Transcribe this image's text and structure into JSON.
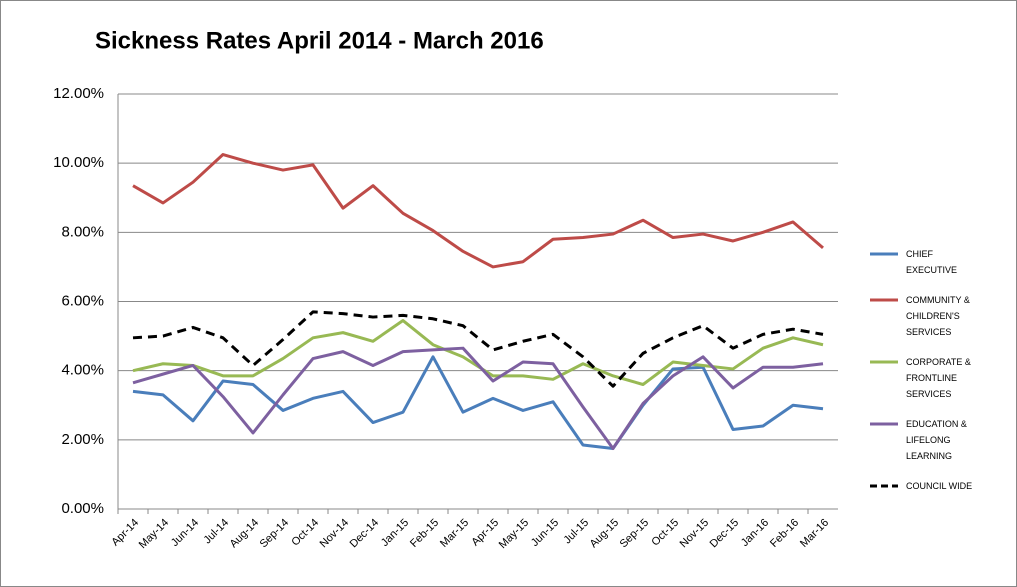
{
  "chart_data": {
    "type": "line",
    "title": "Sickness Rates April 2014 - March 2016",
    "categories": [
      "Apr-14",
      "May-14",
      "Jun-14",
      "Jul-14",
      "Aug-14",
      "Sep-14",
      "Oct-14",
      "Nov-14",
      "Dec-14",
      "Jan-15",
      "Feb-15",
      "Mar-15",
      "Apr-15",
      "May-15",
      "Jun-15",
      "Jul-15",
      "Aug-15",
      "Sep-15",
      "Oct-15",
      "Nov-15",
      "Dec-15",
      "Jan-16",
      "Feb-16",
      "Mar-16"
    ],
    "series": [
      {
        "name": "CHIEF EXECUTIVE",
        "color": "#4a7ebb",
        "values": [
          3.4,
          3.3,
          2.55,
          3.7,
          3.6,
          2.85,
          3.2,
          3.4,
          2.5,
          2.8,
          4.4,
          2.8,
          3.2,
          2.85,
          3.1,
          1.85,
          1.75,
          3.0,
          4.05,
          4.1,
          2.3,
          2.4,
          3.0,
          2.9
        ]
      },
      {
        "name": "COMMUNITY & CHILDREN'S SERVICES",
        "color": "#be4b48",
        "values": [
          9.35,
          8.85,
          9.45,
          10.25,
          10.0,
          9.8,
          9.95,
          8.7,
          9.35,
          8.55,
          8.05,
          7.45,
          7.0,
          7.15,
          7.8,
          7.85,
          7.95,
          8.35,
          7.85,
          7.95,
          7.75,
          8.0,
          8.3,
          7.55
        ]
      },
      {
        "name": "CORPORATE & FRONTLINE SERVICES",
        "color": "#98b954",
        "values": [
          4.0,
          4.2,
          4.15,
          3.85,
          3.85,
          4.35,
          4.95,
          5.1,
          4.85,
          5.45,
          4.75,
          4.4,
          3.85,
          3.85,
          3.75,
          4.2,
          3.85,
          3.6,
          4.25,
          4.15,
          4.05,
          4.65,
          4.95,
          4.75
        ]
      },
      {
        "name": "EDUCATION & LIFELONG LEARNING",
        "color": "#7d60a0",
        "values": [
          3.65,
          3.9,
          4.15,
          3.25,
          2.2,
          3.3,
          4.35,
          4.55,
          4.15,
          4.55,
          4.6,
          4.65,
          3.7,
          4.25,
          4.2,
          2.95,
          1.75,
          3.05,
          3.85,
          4.4,
          3.5,
          4.1,
          4.1,
          4.2
        ]
      },
      {
        "name": "COUNCIL WIDE",
        "color": "#000000",
        "dashed": true,
        "values": [
          4.95,
          5.0,
          5.25,
          4.95,
          4.15,
          4.9,
          5.7,
          5.65,
          5.55,
          5.6,
          5.5,
          5.3,
          4.6,
          4.85,
          5.05,
          4.4,
          3.55,
          4.5,
          4.95,
          5.3,
          4.65,
          5.05,
          5.2,
          5.05
        ]
      }
    ],
    "ylim": [
      0,
      12
    ],
    "yticks": [
      {
        "value": 0,
        "label": "0.00%"
      },
      {
        "value": 2,
        "label": "2.00%"
      },
      {
        "value": 4,
        "label": "4.00%"
      },
      {
        "value": 6,
        "label": "6.00%"
      },
      {
        "value": 8,
        "label": "8.00%"
      },
      {
        "value": 10,
        "label": "10.00%"
      },
      {
        "value": 12,
        "label": "12.00%"
      }
    ],
    "grid": true,
    "legend": "right"
  }
}
